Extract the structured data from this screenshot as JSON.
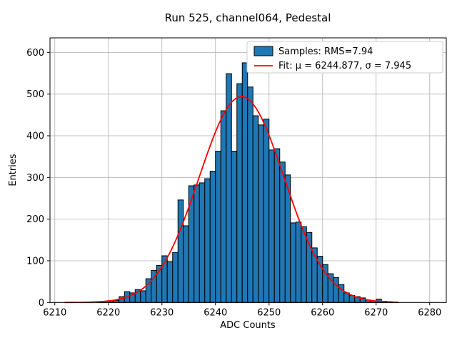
{
  "chart_data": {
    "type": "bar",
    "subtype": "histogram",
    "title": "Run 525, channel064, Pedestal",
    "xlabel": "ADC Counts",
    "ylabel": "Entries",
    "bin_width": 1,
    "bin_left_edges_start": 6218,
    "values": [
      2,
      3,
      4,
      5,
      14,
      26,
      23,
      31,
      28,
      57,
      77,
      89,
      112,
      98,
      120,
      246,
      184,
      280,
      282,
      287,
      297,
      315,
      363,
      460,
      549,
      363,
      525,
      575,
      517,
      448,
      426,
      440,
      366,
      369,
      337,
      306,
      191,
      193,
      182,
      168,
      131,
      111,
      91,
      69,
      60,
      43,
      23,
      17,
      14,
      11,
      6,
      4,
      8,
      3,
      2
    ],
    "x_ticks": [
      6210,
      6220,
      6230,
      6240,
      6250,
      6260,
      6270,
      6280
    ],
    "y_ticks": [
      0,
      100,
      200,
      300,
      400,
      500,
      600
    ],
    "xlim": [
      6209.1,
      6283.1
    ],
    "ylim": [
      0,
      634.9
    ],
    "grid": true,
    "grid_color": "#b0b0b0",
    "bar_color": "#1f77b4",
    "bar_edge_color": "#000000",
    "fit": {
      "type": "gaussian",
      "mu": 6244.877,
      "sigma": 7.945,
      "amplitude": 494,
      "color": "#ff0000",
      "x_start": 6211.8,
      "x_end": 6274.2
    },
    "legend": {
      "position": "upper right",
      "entries": [
        {
          "label": "Samples: RMS=7.94",
          "marker": "patch",
          "color": "#1f77b4"
        },
        {
          "label": "Fit: μ = 6244.877, σ = 7.945",
          "marker": "line",
          "color": "#ff0000"
        }
      ]
    },
    "stats": {
      "rms": 7.94,
      "fit_mu": 6244.877,
      "fit_sigma": 7.945
    }
  }
}
